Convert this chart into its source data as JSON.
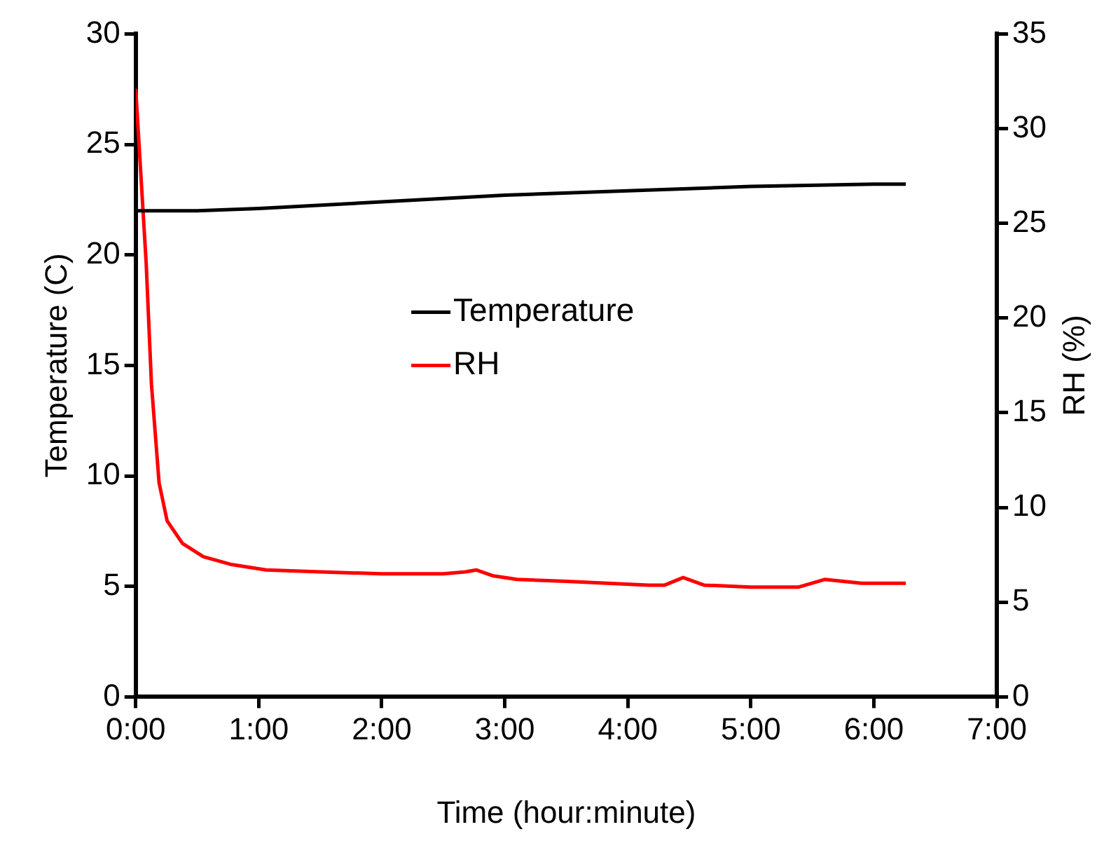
{
  "chart_data": {
    "type": "line",
    "xlabel": "Time (hour:minute)",
    "ylabel": "Temperature (C)",
    "y2label": "RH (%)",
    "xlim": [
      0,
      7
    ],
    "xticks": [
      {
        "value": 0,
        "label": "0:00"
      },
      {
        "value": 1,
        "label": "1:00"
      },
      {
        "value": 2,
        "label": "2:00"
      },
      {
        "value": 3,
        "label": "3:00"
      },
      {
        "value": 4,
        "label": "4:00"
      },
      {
        "value": 5,
        "label": "5:00"
      },
      {
        "value": 6,
        "label": "6:00"
      },
      {
        "value": 7,
        "label": "7:00"
      }
    ],
    "ylim": [
      0,
      30
    ],
    "yticks": [
      0,
      5,
      10,
      15,
      20,
      25,
      30
    ],
    "y2lim": [
      0,
      35
    ],
    "y2ticks": [
      0,
      5,
      10,
      15,
      20,
      25,
      30,
      35
    ],
    "grid": false,
    "legend": "center",
    "marker": "none",
    "line_style": "solid",
    "series": [
      {
        "name": "Temperature",
        "color": "#000000",
        "x": [
          0,
          0.5,
          1,
          2,
          3,
          4,
          5,
          6,
          6.26
        ],
        "values": [
          22.0,
          22.0,
          22.1,
          22.4,
          22.7,
          22.9,
          23.1,
          23.2,
          23.2
        ]
      },
      {
        "name": "RH",
        "color": "#ff0000",
        "axis": "y2",
        "x": [
          0,
          0.085,
          0.128,
          0.19,
          0.255,
          0.38,
          0.55,
          0.77,
          1.06,
          1.5,
          2,
          2.5,
          2.68,
          2.77,
          2.9,
          3.1,
          3.5,
          4.17,
          4.3,
          4.45,
          4.62,
          5,
          5.39,
          5.6,
          5.9,
          6.26
        ],
        "values": [
          32.1,
          22.9,
          16.5,
          11.3,
          9.3,
          8.1,
          7.4,
          7.0,
          6.7,
          6.6,
          6.5,
          6.5,
          6.6,
          6.7,
          6.4,
          6.2,
          6.1,
          5.9,
          5.9,
          6.3,
          5.9,
          5.8,
          5.8,
          6.2,
          6.0,
          6.0
        ]
      }
    ]
  }
}
